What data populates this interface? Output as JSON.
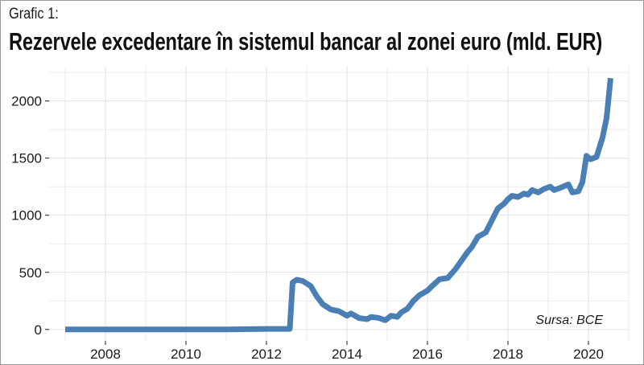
{
  "chart": {
    "label": "Grafic 1:",
    "title": "Rezervele excedentare în sistemul bancar al zonei euro (mld. EUR)",
    "source": "Sursa: BCE"
  },
  "colors": {
    "series": "#4a7fb5",
    "grid": "#e6e6e6",
    "axis": "#1a1a1a"
  },
  "chart_data": {
    "type": "line",
    "title": "Rezervele excedentare în sistemul bancar al zonei euro (mld. EUR)",
    "xlabel": "",
    "ylabel": "",
    "xlim": [
      2006.6,
      2021.0
    ],
    "ylim": [
      -100,
      2300
    ],
    "grid": true,
    "x_ticks": [
      2008,
      2010,
      2012,
      2014,
      2016,
      2018,
      2020
    ],
    "y_ticks": [
      0,
      500,
      1000,
      1500,
      2000
    ],
    "legend": "none",
    "annotation": "Sursa: BCE",
    "series": [
      {
        "x": [
          2007.0,
          2008.0,
          2009.0,
          2010.0,
          2011.0,
          2012.0,
          2012.5,
          2012.58,
          2012.65,
          2012.75,
          2012.9,
          2013.1,
          2013.25,
          2013.4,
          2013.6,
          2013.8,
          2014.0,
          2014.1,
          2014.3,
          2014.5,
          2014.6,
          2014.8,
          2014.95,
          2015.1,
          2015.25,
          2015.35,
          2015.5,
          2015.65,
          2015.8,
          2016.0,
          2016.1,
          2016.3,
          2016.5,
          2016.7,
          2016.9,
          2017.0,
          2017.1,
          2017.25,
          2017.45,
          2017.55,
          2017.75,
          2017.9,
          2018.0,
          2018.1,
          2018.25,
          2018.4,
          2018.5,
          2018.6,
          2018.75,
          2018.9,
          2019.05,
          2019.15,
          2019.3,
          2019.5,
          2019.6,
          2019.75,
          2019.85,
          2019.95,
          2020.05,
          2020.2,
          2020.35,
          2020.45,
          2020.55
        ],
        "values": [
          0,
          0,
          0,
          0,
          0,
          5,
          5,
          5,
          410,
          435,
          425,
          380,
          290,
          220,
          175,
          160,
          120,
          140,
          100,
          90,
          110,
          100,
          80,
          120,
          110,
          150,
          180,
          250,
          300,
          340,
          375,
          440,
          450,
          530,
          630,
          680,
          720,
          810,
          850,
          920,
          1060,
          1100,
          1140,
          1170,
          1160,
          1190,
          1180,
          1220,
          1200,
          1230,
          1250,
          1220,
          1240,
          1270,
          1200,
          1210,
          1290,
          1520,
          1490,
          1510,
          1680,
          1850,
          2200
        ]
      }
    ]
  }
}
